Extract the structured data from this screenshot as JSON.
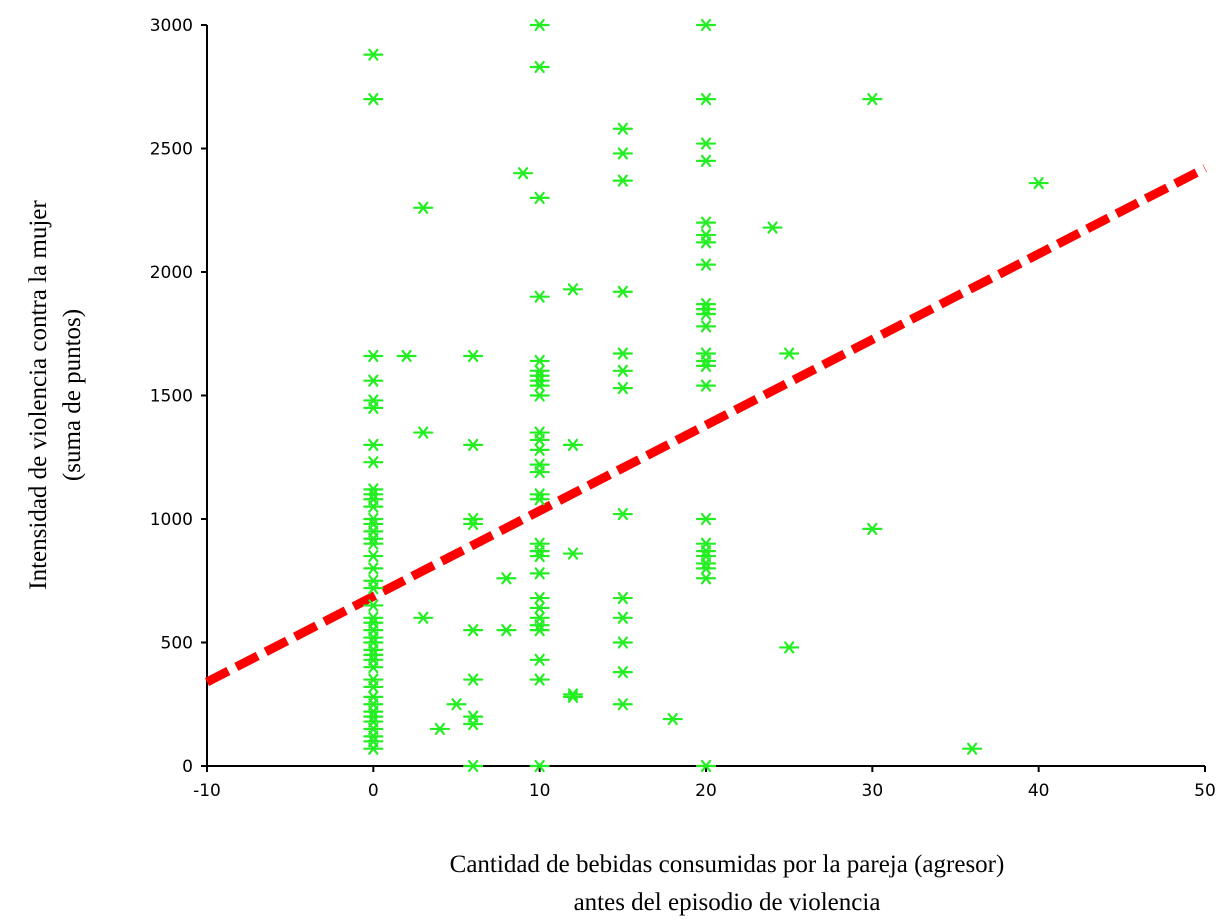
{
  "chart_data": {
    "type": "scatter",
    "xlabel": [
      "Cantidad de bebidas consumidas por la pareja (agresor)",
      "antes del episodio de violencia"
    ],
    "ylabel": [
      "Intensidad de violencia contra la mujer",
      "(suma de puntos)"
    ],
    "xlim": [
      -10,
      50
    ],
    "ylim": [
      0,
      3000
    ],
    "xticks": [
      -10,
      0,
      10,
      20,
      30,
      40,
      50
    ],
    "xtick_labels": [
      "-10",
      "0",
      "10",
      "20",
      "30",
      "40",
      "50"
    ],
    "yticks": [
      0,
      500,
      1000,
      1500,
      2000,
      2500,
      3000
    ],
    "ytick_labels": [
      "0",
      "500",
      "1000",
      "1500",
      "2000",
      "2500",
      "3000"
    ],
    "grid": false,
    "series": [
      {
        "marker": "asterisk",
        "color": "#22ee22",
        "points": [
          [
            0,
            2880
          ],
          [
            0,
            2700
          ],
          [
            0,
            1660
          ],
          [
            0,
            1560
          ],
          [
            0,
            1480
          ],
          [
            0,
            1450
          ],
          [
            0,
            1300
          ],
          [
            0,
            1230
          ],
          [
            0,
            1120
          ],
          [
            0,
            1100
          ],
          [
            0,
            1080
          ],
          [
            0,
            1050
          ],
          [
            0,
            1000
          ],
          [
            0,
            980
          ],
          [
            0,
            950
          ],
          [
            0,
            920
          ],
          [
            0,
            900
          ],
          [
            0,
            850
          ],
          [
            0,
            800
          ],
          [
            0,
            750
          ],
          [
            0,
            720
          ],
          [
            0,
            650
          ],
          [
            0,
            600
          ],
          [
            0,
            580
          ],
          [
            0,
            550
          ],
          [
            0,
            520
          ],
          [
            0,
            500
          ],
          [
            0,
            470
          ],
          [
            0,
            450
          ],
          [
            0,
            430
          ],
          [
            0,
            400
          ],
          [
            0,
            350
          ],
          [
            0,
            320
          ],
          [
            0,
            280
          ],
          [
            0,
            250
          ],
          [
            0,
            220
          ],
          [
            0,
            200
          ],
          [
            0,
            180
          ],
          [
            0,
            150
          ],
          [
            0,
            120
          ],
          [
            0,
            100
          ],
          [
            0,
            70
          ],
          [
            2,
            1660
          ],
          [
            3,
            2260
          ],
          [
            3,
            1350
          ],
          [
            3,
            600
          ],
          [
            4,
            150
          ],
          [
            5,
            250
          ],
          [
            6,
            1660
          ],
          [
            6,
            1300
          ],
          [
            6,
            1000
          ],
          [
            6,
            980
          ],
          [
            6,
            550
          ],
          [
            6,
            350
          ],
          [
            6,
            200
          ],
          [
            6,
            170
          ],
          [
            6,
            0
          ],
          [
            8,
            760
          ],
          [
            8,
            550
          ],
          [
            9,
            2400
          ],
          [
            10,
            3000
          ],
          [
            10,
            2830
          ],
          [
            10,
            2300
          ],
          [
            10,
            1900
          ],
          [
            10,
            1640
          ],
          [
            10,
            1600
          ],
          [
            10,
            1580
          ],
          [
            10,
            1560
          ],
          [
            10,
            1540
          ],
          [
            10,
            1500
          ],
          [
            10,
            1350
          ],
          [
            10,
            1320
          ],
          [
            10,
            1280
          ],
          [
            10,
            1220
          ],
          [
            10,
            1190
          ],
          [
            10,
            1100
          ],
          [
            10,
            1080
          ],
          [
            10,
            900
          ],
          [
            10,
            870
          ],
          [
            10,
            850
          ],
          [
            10,
            780
          ],
          [
            10,
            680
          ],
          [
            10,
            640
          ],
          [
            10,
            600
          ],
          [
            10,
            570
          ],
          [
            10,
            550
          ],
          [
            10,
            430
          ],
          [
            10,
            350
          ],
          [
            10,
            0
          ],
          [
            12,
            1930
          ],
          [
            12,
            1300
          ],
          [
            12,
            860
          ],
          [
            12,
            290
          ],
          [
            12,
            280
          ],
          [
            15,
            2580
          ],
          [
            15,
            2480
          ],
          [
            15,
            2370
          ],
          [
            15,
            1920
          ],
          [
            15,
            1670
          ],
          [
            15,
            1600
          ],
          [
            15,
            1530
          ],
          [
            15,
            1020
          ],
          [
            15,
            680
          ],
          [
            15,
            600
          ],
          [
            15,
            500
          ],
          [
            15,
            380
          ],
          [
            15,
            250
          ],
          [
            18,
            190
          ],
          [
            20,
            3000
          ],
          [
            20,
            2700
          ],
          [
            20,
            2520
          ],
          [
            20,
            2450
          ],
          [
            20,
            2200
          ],
          [
            20,
            2150
          ],
          [
            20,
            2120
          ],
          [
            20,
            2030
          ],
          [
            20,
            1870
          ],
          [
            20,
            1850
          ],
          [
            20,
            1830
          ],
          [
            20,
            1780
          ],
          [
            20,
            1670
          ],
          [
            20,
            1640
          ],
          [
            20,
            1620
          ],
          [
            20,
            1540
          ],
          [
            20,
            1000
          ],
          [
            20,
            900
          ],
          [
            20,
            870
          ],
          [
            20,
            850
          ],
          [
            20,
            820
          ],
          [
            20,
            800
          ],
          [
            20,
            760
          ],
          [
            20,
            0
          ],
          [
            24,
            2180
          ],
          [
            25,
            1670
          ],
          [
            25,
            480
          ],
          [
            30,
            2700
          ],
          [
            30,
            960
          ],
          [
            36,
            70
          ],
          [
            40,
            2360
          ]
        ]
      },
      {
        "type": "line",
        "style": "thick-dashed",
        "color": "#ff0000",
        "x": [
          -10,
          50
        ],
        "y": [
          340,
          2420
        ]
      }
    ]
  }
}
